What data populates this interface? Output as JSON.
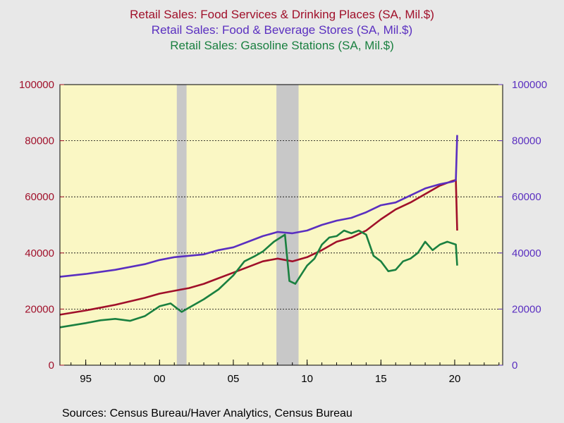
{
  "chart_data": {
    "type": "line",
    "titles": [
      {
        "text": "Retail Sales: Food Services & Drinking Places (SA, Mil.$)",
        "color": "#a0102a"
      },
      {
        "text": "Retail Sales: Food & Beverage Stores (SA, Mil.$)",
        "color": "#5a2fc0"
      },
      {
        "text": "Retail Sales: Gasoline Stations (SA, Mil.$)",
        "color": "#1a8040"
      }
    ],
    "xlim": [
      1993.25,
      2023.25
    ],
    "x_ticks": [
      {
        "value": 1995,
        "label": "95"
      },
      {
        "value": 2000,
        "label": "00"
      },
      {
        "value": 2005,
        "label": "05"
      },
      {
        "value": 2010,
        "label": "10"
      },
      {
        "value": 2015,
        "label": "15"
      },
      {
        "value": 2020,
        "label": "20"
      }
    ],
    "y_left": {
      "lim": [
        0,
        100000
      ],
      "ticks": [
        0,
        20000,
        40000,
        60000,
        80000,
        100000
      ],
      "color": "#a0102a"
    },
    "y_right": {
      "lim": [
        0,
        100000
      ],
      "ticks": [
        0,
        20000,
        40000,
        60000,
        80000,
        100000
      ],
      "color": "#5a2fc0"
    },
    "gridlines": [
      20000,
      40000,
      60000,
      80000
    ],
    "recessions": [
      [
        2001.17,
        2001.83
      ],
      [
        2007.92,
        2009.42
      ]
    ],
    "plot_background": "#faf7c4",
    "recession_color": "#c8c8c8",
    "series": [
      {
        "key": "food_services",
        "color": "#a0102a",
        "points": [
          [
            1993.25,
            18000
          ],
          [
            1995,
            19500
          ],
          [
            1997,
            21500
          ],
          [
            1999,
            24000
          ],
          [
            2000,
            25500
          ],
          [
            2001,
            26500
          ],
          [
            2002,
            27500
          ],
          [
            2003,
            29000
          ],
          [
            2004,
            31000
          ],
          [
            2005,
            33000
          ],
          [
            2006,
            35000
          ],
          [
            2007,
            37000
          ],
          [
            2008,
            38000
          ],
          [
            2009,
            37000
          ],
          [
            2010,
            38500
          ],
          [
            2011,
            41000
          ],
          [
            2012,
            44000
          ],
          [
            2013,
            45500
          ],
          [
            2014,
            48000
          ],
          [
            2015,
            52000
          ],
          [
            2016,
            55500
          ],
          [
            2017,
            58000
          ],
          [
            2018,
            61000
          ],
          [
            2019,
            64000
          ],
          [
            2019.75,
            65500
          ],
          [
            2020.08,
            66000
          ],
          [
            2020.17,
            48000
          ]
        ]
      },
      {
        "key": "food_beverage",
        "color": "#5a2fc0",
        "points": [
          [
            1993.25,
            31500
          ],
          [
            1995,
            32500
          ],
          [
            1997,
            34000
          ],
          [
            1999,
            36000
          ],
          [
            2000,
            37500
          ],
          [
            2001,
            38500
          ],
          [
            2002,
            39000
          ],
          [
            2003,
            39500
          ],
          [
            2004,
            41000
          ],
          [
            2005,
            42000
          ],
          [
            2006,
            44000
          ],
          [
            2007,
            46000
          ],
          [
            2008,
            47500
          ],
          [
            2009,
            47000
          ],
          [
            2010,
            48000
          ],
          [
            2011,
            50000
          ],
          [
            2012,
            51500
          ],
          [
            2013,
            52500
          ],
          [
            2014,
            54500
          ],
          [
            2015,
            57000
          ],
          [
            2016,
            58000
          ],
          [
            2017,
            60500
          ],
          [
            2018,
            63000
          ],
          [
            2019,
            64500
          ],
          [
            2019.92,
            65500
          ],
          [
            2020.08,
            66000
          ],
          [
            2020.17,
            82000
          ]
        ]
      },
      {
        "key": "gasoline",
        "color": "#1a8040",
        "points": [
          [
            1993.25,
            13500
          ],
          [
            1995,
            15000
          ],
          [
            1996,
            16000
          ],
          [
            1997,
            16500
          ],
          [
            1998,
            15800
          ],
          [
            1999,
            17500
          ],
          [
            2000,
            21000
          ],
          [
            2000.75,
            22000
          ],
          [
            2001.5,
            19000
          ],
          [
            2002,
            20500
          ],
          [
            2003,
            23500
          ],
          [
            2004,
            27000
          ],
          [
            2005,
            32000
          ],
          [
            2005.75,
            37000
          ],
          [
            2006.5,
            39000
          ],
          [
            2007,
            40500
          ],
          [
            2007.75,
            44000
          ],
          [
            2008.5,
            46500
          ],
          [
            2008.8,
            30000
          ],
          [
            2009.2,
            29000
          ],
          [
            2009.75,
            33500
          ],
          [
            2010,
            35500
          ],
          [
            2010.5,
            38000
          ],
          [
            2011,
            43000
          ],
          [
            2011.5,
            45500
          ],
          [
            2012,
            46000
          ],
          [
            2012.5,
            48000
          ],
          [
            2013,
            47000
          ],
          [
            2013.5,
            48000
          ],
          [
            2014,
            46500
          ],
          [
            2014.5,
            39000
          ],
          [
            2015,
            37000
          ],
          [
            2015.5,
            33500
          ],
          [
            2016,
            34000
          ],
          [
            2016.5,
            37000
          ],
          [
            2017,
            38000
          ],
          [
            2017.5,
            40000
          ],
          [
            2018,
            44000
          ],
          [
            2018.5,
            41000
          ],
          [
            2019,
            43000
          ],
          [
            2019.5,
            44000
          ],
          [
            2020.08,
            43000
          ],
          [
            2020.17,
            35500
          ]
        ]
      }
    ]
  },
  "footer": {
    "source": "Sources:  Census Bureau/Haver Analytics, Census Bureau"
  }
}
